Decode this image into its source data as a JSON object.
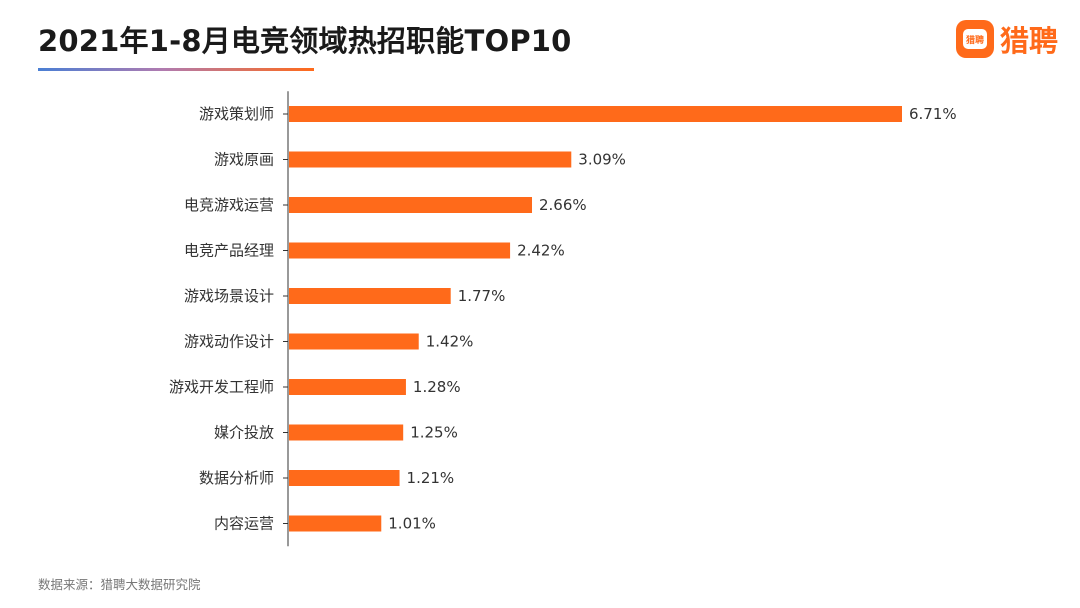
{
  "header": {
    "title": "2021年1-8月电竞领域热招职能TOP10",
    "brand_name": "猎聘",
    "brand_icon_text": "猎聘"
  },
  "colors": {
    "bar": "#ff6a1a",
    "axis": "#333333",
    "label": "#333333"
  },
  "chart_data": {
    "type": "bar",
    "orientation": "horizontal",
    "categories": [
      "游戏策划师",
      "游戏原画",
      "电竞游戏运营",
      "电竞产品经理",
      "游戏场景设计",
      "游戏动作设计",
      "游戏开发工程师",
      "媒介投放",
      "数据分析师",
      "内容运营"
    ],
    "values": [
      6.71,
      3.09,
      2.66,
      2.42,
      1.77,
      1.42,
      1.28,
      1.25,
      1.21,
      1.01
    ],
    "data_labels": [
      "6.71%",
      "3.09%",
      "2.66%",
      "2.42%",
      "1.77%",
      "1.42%",
      "1.28%",
      "1.25%",
      "1.21%",
      "1.01%"
    ],
    "title": "2021年1-8月电竞领域热招职能TOP10",
    "xlim": [
      0,
      6.71
    ],
    "grid": false,
    "legend": "none"
  },
  "footer": {
    "source": "数据来源：猎聘大数据研究院"
  }
}
